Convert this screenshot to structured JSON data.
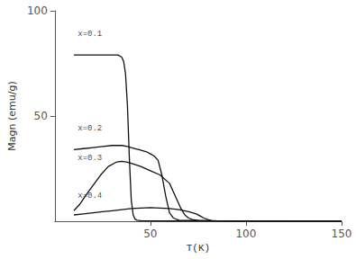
{
  "chart_data": {
    "type": "line",
    "xlabel": "T(K)",
    "ylabel": "Magn (emu/g)",
    "xlim": [
      0,
      150
    ],
    "ylim": [
      0,
      100
    ],
    "xticks": [
      50,
      100,
      150
    ],
    "yticks": [
      50,
      100
    ],
    "grid": false,
    "series": [
      {
        "color": "#111111",
        "x": [
          10,
          13,
          16,
          20,
          25,
          30,
          33,
          35,
          36,
          37,
          38,
          39,
          40,
          41,
          42,
          43,
          45,
          50,
          60,
          80,
          100,
          130,
          150
        ],
        "values": [
          79,
          79,
          79,
          79,
          79,
          79,
          79,
          78,
          76,
          70,
          55,
          30,
          10,
          3,
          1,
          0.5,
          0.3,
          0.2,
          0.1,
          0.1,
          0.1,
          0.1,
          0.1
        ]
      },
      {
        "color": "#111111",
        "x": [
          10,
          15,
          20,
          25,
          30,
          35,
          38,
          40,
          42,
          44,
          46,
          48,
          50,
          52,
          54,
          56,
          58,
          60,
          62,
          65,
          80,
          100,
          130,
          150
        ],
        "values": [
          34,
          34.5,
          35,
          35.5,
          36,
          36,
          35.5,
          35,
          34.5,
          34,
          33.5,
          33,
          32,
          31,
          29,
          22,
          12,
          4,
          1.5,
          0.5,
          0.3,
          0.2,
          0.1,
          0.1
        ]
      },
      {
        "color": "#111111",
        "x": [
          10,
          13,
          16,
          20,
          24,
          28,
          32,
          35,
          38,
          40,
          45,
          50,
          55,
          60,
          63,
          66,
          68,
          70,
          72,
          75,
          80,
          100,
          130,
          150
        ],
        "values": [
          5,
          8,
          12,
          17,
          22,
          26,
          28,
          28.5,
          28,
          27.5,
          26,
          24,
          22,
          18,
          12,
          6,
          3,
          1.5,
          0.8,
          0.4,
          0.2,
          0.1,
          0.1,
          0.1
        ]
      },
      {
        "color": "#111111",
        "x": [
          10,
          15,
          20,
          25,
          30,
          35,
          40,
          50,
          60,
          65,
          70,
          74,
          76,
          78,
          80,
          82,
          85,
          90,
          100,
          130,
          150
        ],
        "values": [
          3,
          3.5,
          4,
          4.5,
          5,
          5.5,
          6,
          6.5,
          6,
          5.5,
          4.5,
          3.5,
          2.5,
          1.5,
          0.8,
          0.4,
          0.2,
          0.1,
          0.1,
          0.1,
          0.1
        ]
      }
    ],
    "annotations": [
      {
        "text": "x=0.1",
        "x": 12,
        "y": 87
      },
      {
        "text": "x=0.2",
        "x": 12,
        "y": 42
      },
      {
        "text": "x=0.3",
        "x": 12,
        "y": 28
      },
      {
        "text": "x=0.4",
        "x": 12,
        "y": 10
      }
    ]
  }
}
